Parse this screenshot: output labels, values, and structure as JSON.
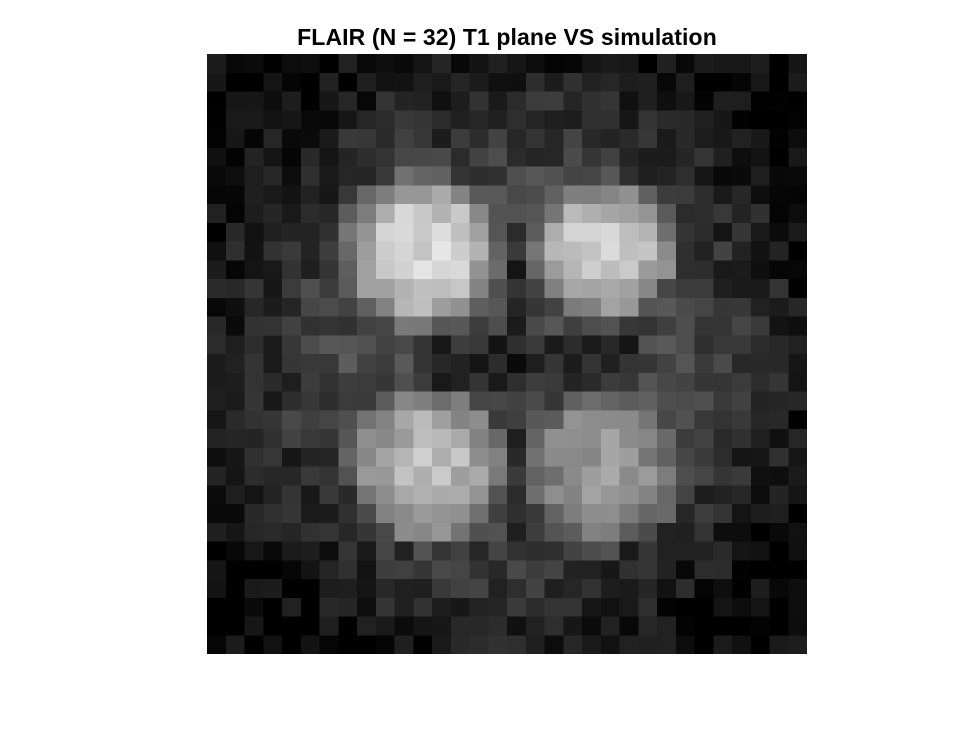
{
  "title": "FLAIR (N = 32) T1 plane VS simulation",
  "image": {
    "kind": "grayscale simulated MRI slice",
    "colormap": "gray",
    "grid_size": 32,
    "axes_visible": false
  }
}
